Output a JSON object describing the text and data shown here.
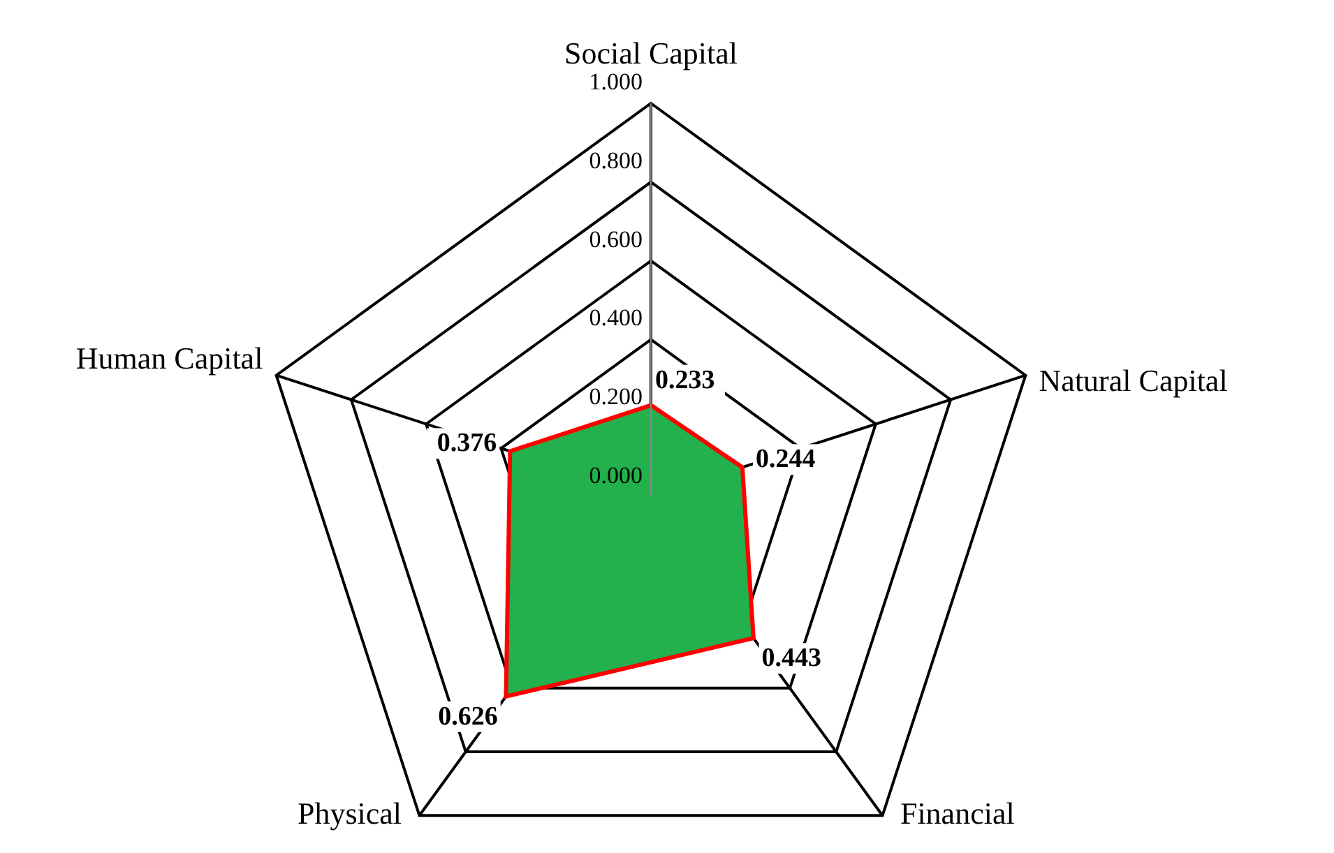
{
  "chart_data": {
    "type": "radar",
    "categories": [
      "Social Capital",
      "Natural Capital",
      "Financial",
      "Physical",
      "Human Capital"
    ],
    "series": [
      {
        "color": "#22b14c",
        "values": [
          0.233,
          0.244,
          0.443,
          0.626,
          0.376
        ]
      }
    ],
    "ylim": [
      0,
      1
    ],
    "yticks": [
      {
        "value": 0,
        "label": "0.000"
      },
      {
        "value": 0.2,
        "label": "0.200"
      },
      {
        "value": 0.4,
        "label": "0.400"
      },
      {
        "value": 0.6,
        "label": "0.600"
      },
      {
        "value": 0.8,
        "label": "0.800"
      },
      {
        "value": 1,
        "label": "1.000"
      }
    ],
    "grid": true,
    "data_labels": true,
    "legend": false
  }
}
